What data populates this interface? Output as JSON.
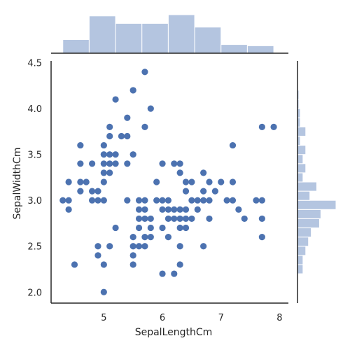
{
  "chart_data": {
    "type": "scatter",
    "subtype": "jointplot",
    "xlabel": "SepalLengthCm",
    "ylabel": "SepalWidthCm",
    "xlim": [
      4.1,
      8.15
    ],
    "ylim": [
      1.88,
      4.52
    ],
    "xticks": [
      5,
      6,
      7,
      8
    ],
    "yticks": [
      2.0,
      2.5,
      3.0,
      3.5,
      4.0,
      4.5
    ],
    "xtick_labels": [
      "5",
      "6",
      "7",
      "8"
    ],
    "ytick_labels": [
      "2.0",
      "2.5",
      "3.0",
      "3.5",
      "4.0",
      "4.5"
    ],
    "grid": false,
    "colors": {
      "points": "#4c72b0",
      "hist": "#b4c5e0",
      "axis": "#262626"
    },
    "points": [
      [
        4.3,
        3.0
      ],
      [
        4.4,
        3.0
      ],
      [
        4.4,
        3.2
      ],
      [
        4.4,
        2.9
      ],
      [
        4.5,
        2.3
      ],
      [
        4.6,
        3.1
      ],
      [
        4.6,
        3.4
      ],
      [
        4.6,
        3.6
      ],
      [
        4.6,
        3.2
      ],
      [
        4.7,
        3.2
      ],
      [
        4.8,
        3.0
      ],
      [
        4.8,
        3.4
      ],
      [
        4.8,
        3.1
      ],
      [
        4.9,
        3.0
      ],
      [
        4.9,
        3.1
      ],
      [
        4.9,
        2.5
      ],
      [
        4.9,
        2.4
      ],
      [
        5.0,
        3.6
      ],
      [
        5.0,
        3.4
      ],
      [
        5.0,
        3.0
      ],
      [
        5.0,
        3.2
      ],
      [
        5.0,
        3.5
      ],
      [
        5.0,
        3.3
      ],
      [
        5.0,
        2.0
      ],
      [
        5.0,
        2.3
      ],
      [
        5.1,
        3.5
      ],
      [
        5.1,
        3.8
      ],
      [
        5.1,
        3.7
      ],
      [
        5.1,
        3.3
      ],
      [
        5.1,
        3.4
      ],
      [
        5.1,
        2.5
      ],
      [
        5.2,
        4.1
      ],
      [
        5.2,
        3.5
      ],
      [
        5.2,
        3.4
      ],
      [
        5.2,
        2.7
      ],
      [
        5.3,
        3.7
      ],
      [
        5.4,
        3.9
      ],
      [
        5.4,
        3.7
      ],
      [
        5.4,
        3.4
      ],
      [
        5.4,
        3.0
      ],
      [
        5.5,
        4.2
      ],
      [
        5.5,
        3.5
      ],
      [
        5.5,
        2.3
      ],
      [
        5.5,
        2.4
      ],
      [
        5.5,
        2.5
      ],
      [
        5.5,
        2.6
      ],
      [
        5.6,
        2.9
      ],
      [
        5.6,
        3.0
      ],
      [
        5.6,
        2.5
      ],
      [
        5.6,
        2.8
      ],
      [
        5.6,
        2.7
      ],
      [
        5.7,
        4.4
      ],
      [
        5.7,
        3.8
      ],
      [
        5.7,
        2.8
      ],
      [
        5.7,
        2.6
      ],
      [
        5.7,
        3.0
      ],
      [
        5.7,
        2.9
      ],
      [
        5.7,
        2.5
      ],
      [
        5.8,
        4.0
      ],
      [
        5.8,
        2.7
      ],
      [
        5.8,
        2.6
      ],
      [
        5.8,
        2.8
      ],
      [
        5.9,
        3.0
      ],
      [
        5.9,
        3.2
      ],
      [
        6.0,
        2.2
      ],
      [
        6.0,
        2.9
      ],
      [
        6.0,
        3.4
      ],
      [
        6.0,
        2.7
      ],
      [
        6.0,
        3.0
      ],
      [
        6.1,
        2.9
      ],
      [
        6.1,
        2.8
      ],
      [
        6.1,
        3.0
      ],
      [
        6.1,
        2.6
      ],
      [
        6.2,
        2.2
      ],
      [
        6.2,
        2.9
      ],
      [
        6.2,
        3.4
      ],
      [
        6.2,
        2.8
      ],
      [
        6.3,
        3.3
      ],
      [
        6.3,
        2.5
      ],
      [
        6.3,
        2.3
      ],
      [
        6.3,
        2.9
      ],
      [
        6.3,
        2.8
      ],
      [
        6.3,
        2.7
      ],
      [
        6.3,
        3.4
      ],
      [
        6.4,
        3.2
      ],
      [
        6.4,
        2.9
      ],
      [
        6.4,
        2.7
      ],
      [
        6.4,
        2.8
      ],
      [
        6.4,
        3.1
      ],
      [
        6.5,
        2.8
      ],
      [
        6.5,
        3.0
      ],
      [
        6.5,
        3.2
      ],
      [
        6.6,
        2.9
      ],
      [
        6.6,
        3.0
      ],
      [
        6.7,
        3.1
      ],
      [
        6.7,
        3.0
      ],
      [
        6.7,
        2.5
      ],
      [
        6.7,
        3.3
      ],
      [
        6.8,
        2.8
      ],
      [
        6.8,
        3.0
      ],
      [
        6.8,
        3.2
      ],
      [
        6.9,
        3.1
      ],
      [
        7.0,
        3.2
      ],
      [
        7.1,
        3.0
      ],
      [
        7.2,
        3.6
      ],
      [
        7.2,
        3.2
      ],
      [
        7.2,
        3.0
      ],
      [
        7.3,
        2.9
      ],
      [
        7.4,
        2.8
      ],
      [
        7.6,
        3.0
      ],
      [
        7.7,
        3.8
      ],
      [
        7.7,
        2.6
      ],
      [
        7.7,
        2.8
      ],
      [
        7.7,
        3.0
      ],
      [
        7.9,
        3.8
      ]
    ],
    "marginal_x": {
      "bin_edges": [
        4.3,
        4.75,
        5.2,
        5.65,
        6.1,
        6.55,
        7.0,
        7.45,
        7.9
      ],
      "counts": [
        11,
        30,
        24,
        24,
        31,
        21,
        7,
        6
      ]
    },
    "marginal_y": {
      "bin_edges": [
        2.2,
        2.3,
        2.4,
        2.5,
        2.6,
        2.7,
        2.8,
        2.9,
        3.0,
        3.1,
        3.2,
        3.3,
        3.4,
        3.5,
        3.6,
        3.7,
        3.8,
        3.9,
        4.0,
        4.1,
        4.2
      ],
      "counts": [
        4,
        4,
        6,
        8,
        10,
        16,
        17,
        28,
        9,
        14,
        4,
        6,
        4,
        6,
        2,
        6,
        2,
        2,
        1,
        1
      ]
    }
  }
}
